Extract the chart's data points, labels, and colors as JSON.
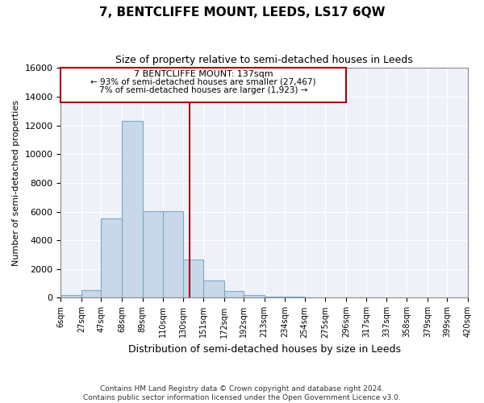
{
  "title": "7, BENTCLIFFE MOUNT, LEEDS, LS17 6QW",
  "subtitle": "Size of property relative to semi-detached houses in Leeds",
  "xlabel": "Distribution of semi-detached houses by size in Leeds",
  "ylabel": "Number of semi-detached properties",
  "footnote": "Contains HM Land Registry data © Crown copyright and database right 2024.\nContains public sector information licensed under the Open Government Licence v3.0.",
  "property_label": "7 BENTCLIFFE MOUNT: 137sqm",
  "pct_smaller": 93,
  "count_smaller": 27467,
  "pct_larger": 7,
  "count_larger": 1923,
  "bin_edges": [
    6,
    27,
    47,
    68,
    89,
    110,
    130,
    151,
    172,
    192,
    213,
    234,
    254,
    275,
    296,
    317,
    337,
    358,
    379,
    399,
    420
  ],
  "bar_heights": [
    200,
    550,
    5500,
    12300,
    6050,
    6050,
    2650,
    1200,
    450,
    200,
    100,
    70,
    50,
    30,
    15,
    10,
    7,
    5,
    3,
    2
  ],
  "bar_color": "#c8d8e8",
  "bar_edge_color": "#7aaac8",
  "vline_color": "#aa0000",
  "vline_x": 137,
  "annotation_box_color": "#aa0000",
  "background_color": "#ffffff",
  "plot_bg_color": "#eef2f8",
  "ylim": [
    0,
    16000
  ],
  "yticks": [
    0,
    2000,
    4000,
    6000,
    8000,
    10000,
    12000,
    14000,
    16000
  ],
  "grid_color": "#ffffff"
}
